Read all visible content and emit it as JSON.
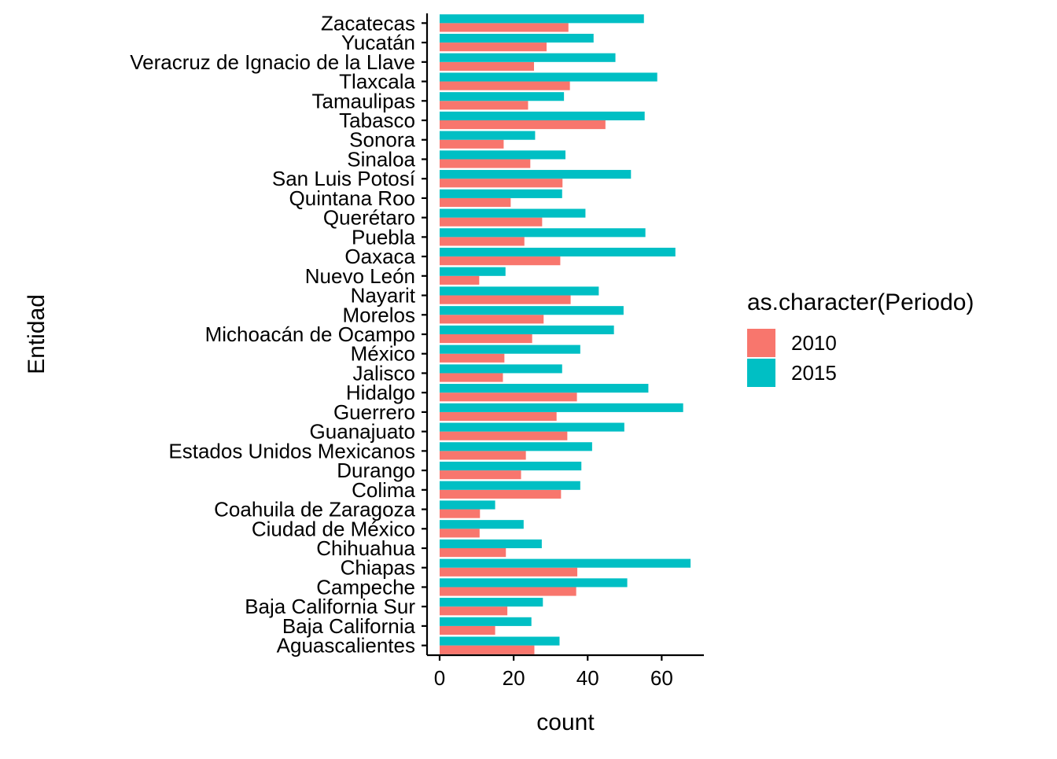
{
  "chart_data": {
    "type": "bar",
    "orientation": "horizontal",
    "xlabel": "count",
    "ylabel": "Entidad",
    "xlim": [
      -3.4,
      71.4
    ],
    "xticks": [
      0,
      20,
      40,
      60
    ],
    "grid": false,
    "legend": {
      "title": "as.character(Periodo)",
      "placement": "right"
    },
    "categories": [
      "Aguascalientes",
      "Baja California",
      "Baja California Sur",
      "Campeche",
      "Chiapas",
      "Chihuahua",
      "Ciudad de México",
      "Coahuila de Zaragoza",
      "Colima",
      "Durango",
      "Estados Unidos Mexicanos",
      "Guanajuato",
      "Guerrero",
      "Hidalgo",
      "Jalisco",
      "México",
      "Michoacán de Ocampo",
      "Morelos",
      "Nayarit",
      "Nuevo León",
      "Oaxaca",
      "Puebla",
      "Querétaro",
      "Quintana Roo",
      "San Luis Potosí",
      "Sinaloa",
      "Sonora",
      "Tabasco",
      "Tamaulipas",
      "Tlaxcala",
      "Veracruz de Ignacio de la Llave",
      "Yucatán",
      "Zacatecas"
    ],
    "series": [
      {
        "name": "2010",
        "color": "#F8766D",
        "values": [
          25.6,
          15.0,
          18.3,
          36.9,
          37.2,
          17.9,
          10.8,
          10.9,
          32.8,
          22.0,
          23.3,
          34.5,
          31.6,
          37.1,
          17.1,
          17.5,
          25.0,
          28.1,
          35.4,
          10.7,
          32.6,
          22.9,
          27.7,
          19.2,
          33.2,
          24.5,
          17.3,
          44.8,
          23.9,
          35.2,
          25.5,
          28.9,
          34.8
        ]
      },
      {
        "name": "2015",
        "color": "#00BFC4",
        "values": [
          32.4,
          24.8,
          27.9,
          50.7,
          67.8,
          27.6,
          22.7,
          15.0,
          38.0,
          38.3,
          41.2,
          49.9,
          65.8,
          56.4,
          33.1,
          38.0,
          47.1,
          49.7,
          43.0,
          17.8,
          63.7,
          55.6,
          39.4,
          33.1,
          51.7,
          34.0,
          25.8,
          55.4,
          33.6,
          58.8,
          47.5,
          41.6,
          55.2
        ]
      }
    ]
  }
}
